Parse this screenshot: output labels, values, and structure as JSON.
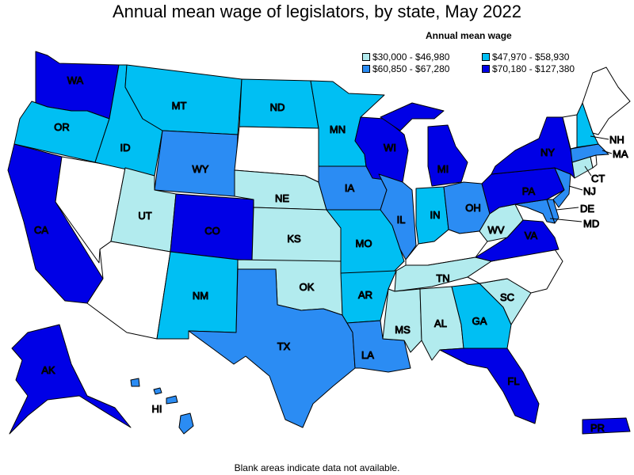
{
  "title": "Annual mean wage of legislators, by state, May 2022",
  "legend": {
    "title": "Annual mean wage",
    "items": [
      {
        "label": "$30,000 - $46,980",
        "color": "#b2ebee"
      },
      {
        "label": "$47,970 - $58,930",
        "color": "#00bff3"
      },
      {
        "label": "$60,850 - $67,280",
        "color": "#2b8cf3"
      },
      {
        "label": "$70,180 - $127,380",
        "color": "#0000e6"
      }
    ]
  },
  "footnote": "Blank areas indicate data not available.",
  "states": [
    {
      "abbr": "WA",
      "tier": 3
    },
    {
      "abbr": "OR",
      "tier": 1
    },
    {
      "abbr": "CA",
      "tier": 3
    },
    {
      "abbr": "ID",
      "tier": 1
    },
    {
      "abbr": "MT",
      "tier": 1
    },
    {
      "abbr": "WY",
      "tier": 2
    },
    {
      "abbr": "UT",
      "tier": 0
    },
    {
      "abbr": "CO",
      "tier": 3
    },
    {
      "abbr": "NM",
      "tier": 1
    },
    {
      "abbr": "ND",
      "tier": 1
    },
    {
      "abbr": "NE",
      "tier": 0
    },
    {
      "abbr": "KS",
      "tier": 0
    },
    {
      "abbr": "OK",
      "tier": 0
    },
    {
      "abbr": "TX",
      "tier": 2
    },
    {
      "abbr": "MN",
      "tier": 1
    },
    {
      "abbr": "IA",
      "tier": 2
    },
    {
      "abbr": "MO",
      "tier": 1
    },
    {
      "abbr": "AR",
      "tier": 1
    },
    {
      "abbr": "LA",
      "tier": 2
    },
    {
      "abbr": "WI",
      "tier": 3
    },
    {
      "abbr": "IL",
      "tier": 2
    },
    {
      "abbr": "MI",
      "tier": 3
    },
    {
      "abbr": "IN",
      "tier": 1
    },
    {
      "abbr": "OH",
      "tier": 2
    },
    {
      "abbr": "TN",
      "tier": 0
    },
    {
      "abbr": "MS",
      "tier": 0
    },
    {
      "abbr": "AL",
      "tier": 0
    },
    {
      "abbr": "GA",
      "tier": 1
    },
    {
      "abbr": "FL",
      "tier": 3
    },
    {
      "abbr": "SC",
      "tier": 0
    },
    {
      "abbr": "WV",
      "tier": 0
    },
    {
      "abbr": "VA",
      "tier": 3
    },
    {
      "abbr": "MD",
      "tier": 2
    },
    {
      "abbr": "DE",
      "tier": 2
    },
    {
      "abbr": "PA",
      "tier": 3
    },
    {
      "abbr": "NJ",
      "tier": 2
    },
    {
      "abbr": "NY",
      "tier": 3
    },
    {
      "abbr": "CT",
      "tier": 0
    },
    {
      "abbr": "MA",
      "tier": 2
    },
    {
      "abbr": "NH",
      "tier": 1
    },
    {
      "abbr": "AK",
      "tier": 3
    },
    {
      "abbr": "HI",
      "tier": 2
    },
    {
      "abbr": "PR",
      "tier": 3
    },
    {
      "abbr": "NV",
      "tier": null
    },
    {
      "abbr": "AZ",
      "tier": null
    },
    {
      "abbr": "SD",
      "tier": null
    },
    {
      "abbr": "KY",
      "tier": null
    },
    {
      "abbr": "NC",
      "tier": null
    },
    {
      "abbr": "ME",
      "tier": null
    },
    {
      "abbr": "VT",
      "tier": null
    },
    {
      "abbr": "RI",
      "tier": null
    }
  ]
}
